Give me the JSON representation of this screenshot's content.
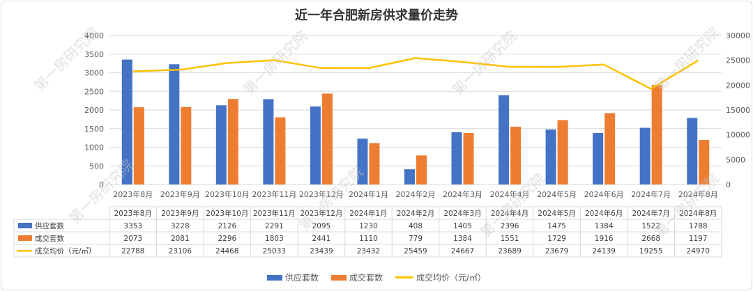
{
  "title": "近一年合肥新房供求量价走势",
  "watermark": "第一房研究院",
  "colors": {
    "supply": "#4472c4",
    "deal": "#ed7d31",
    "price": "#ffc000",
    "grid": "#d9d9d9"
  },
  "chart_data": {
    "type": "bar",
    "categories": [
      "2023年8月",
      "2023年9月",
      "2023年10月",
      "2023年11月",
      "2023年12月",
      "2024年1月",
      "2024年2月",
      "2024年3月",
      "2024年4月",
      "2024年5月",
      "2024年6月",
      "2024年7月",
      "2024年8月"
    ],
    "series": [
      {
        "name": "供应套数",
        "type": "bar",
        "axis": "left",
        "values": [
          3353,
          3228,
          2126,
          2291,
          2095,
          1230,
          408,
          1405,
          2396,
          1475,
          1384,
          1522,
          1788
        ]
      },
      {
        "name": "成交套数",
        "type": "bar",
        "axis": "left",
        "values": [
          2073,
          2081,
          2296,
          1803,
          2441,
          1110,
          779,
          1384,
          1551,
          1729,
          1916,
          2668,
          1197
        ]
      },
      {
        "name": "成交均价（元/㎡）",
        "type": "line",
        "axis": "right",
        "values": [
          22788,
          23106,
          24468,
          25033,
          23439,
          23432,
          25459,
          24667,
          23689,
          23679,
          24139,
          19255,
          24970
        ]
      }
    ],
    "ylim_left": [
      0,
      4000
    ],
    "yticks_left": [
      "0",
      "500",
      "1000",
      "1500",
      "2000",
      "2500",
      "3000",
      "3500",
      "4000"
    ],
    "ylim_right": [
      0,
      30000
    ],
    "yticks_right": [
      "0",
      "5000",
      "10000",
      "15000",
      "20000",
      "25000",
      "30000"
    ],
    "grid": true,
    "legend_position": "bottom",
    "data_table": true
  }
}
